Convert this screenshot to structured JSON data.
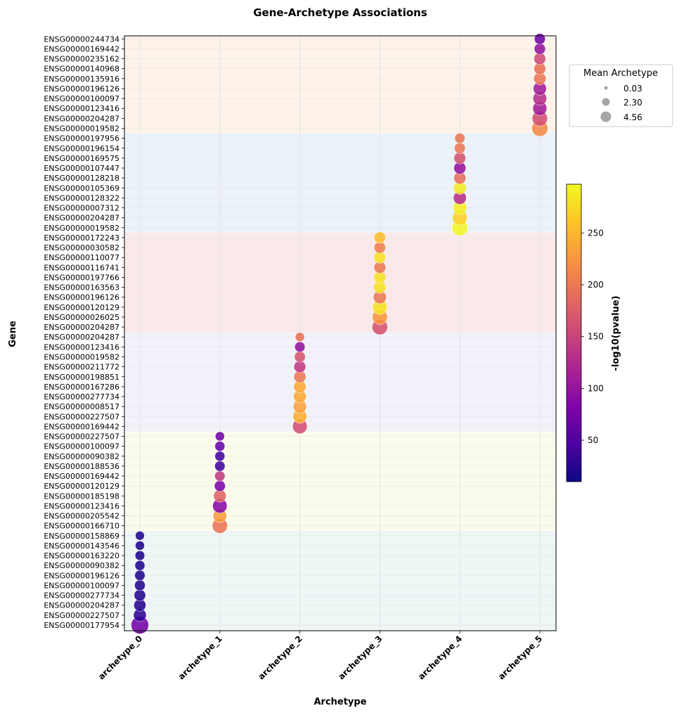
{
  "chart_data": {
    "type": "scatter",
    "title": "Gene-Archetype Associations",
    "xlabel": "Archetype",
    "ylabel": "Gene",
    "categories": [
      "archetype_0",
      "archetype_1",
      "archetype_2",
      "archetype_3",
      "archetype_4",
      "archetype_5"
    ],
    "gene_labels": [
      "ENSG00000177954",
      "ENSG00000227507",
      "ENSG00000204287",
      "ENSG00000277734",
      "ENSG00000100097",
      "ENSG00000196126",
      "ENSG00000090382",
      "ENSG00000163220",
      "ENSG00000143546",
      "ENSG00000158869",
      "ENSG00000166710",
      "ENSG00000205542",
      "ENSG00000123416",
      "ENSG00000185198",
      "ENSG00000120129",
      "ENSG00000169442",
      "ENSG00000188536",
      "ENSG00000090382",
      "ENSG00000100097",
      "ENSG00000227507",
      "ENSG00000169442",
      "ENSG00000227507",
      "ENSG00000008517",
      "ENSG00000277734",
      "ENSG00000167286",
      "ENSG00000198851",
      "ENSG00000211772",
      "ENSG00000019582",
      "ENSG00000123416",
      "ENSG00000204287",
      "ENSG00000204287",
      "ENSG00000026025",
      "ENSG00000120129",
      "ENSG00000196126",
      "ENSG00000163563",
      "ENSG00000197766",
      "ENSG00000116741",
      "ENSG00000110077",
      "ENSG00000030582",
      "ENSG00000172243",
      "ENSG00000019582",
      "ENSG00000204287",
      "ENSG00000007312",
      "ENSG00000128322",
      "ENSG00000105369",
      "ENSG00000128218",
      "ENSG00000107447",
      "ENSG00000169575",
      "ENSG00000196154",
      "ENSG00000197956",
      "ENSG00000019582",
      "ENSG00000204287",
      "ENSG00000123416",
      "ENSG00000100097",
      "ENSG00000196126",
      "ENSG00000135916",
      "ENSG00000140968",
      "ENSG00000235162",
      "ENSG00000169442",
      "ENSG00000244734"
    ],
    "series": [
      {
        "archetype": 0,
        "mean_archetype": [
          4.56,
          1.8,
          1.5,
          1.3,
          1.0,
          0.9,
          0.8,
          0.7,
          0.6,
          0.55
        ],
        "neg_log10_pvalue": [
          75,
          30,
          25,
          22,
          22,
          22,
          20,
          20,
          20,
          20
        ]
      },
      {
        "archetype": 1,
        "mean_archetype": [
          3.0,
          2.2,
          2.6,
          1.7,
          1.1,
          0.9,
          0.9,
          0.8,
          0.8,
          0.6
        ],
        "neg_log10_pvalue": [
          195,
          230,
          90,
          180,
          80,
          140,
          40,
          40,
          65,
          70
        ]
      },
      {
        "archetype": 2,
        "mean_archetype": [
          2.7,
          2.3,
          2.0,
          1.8,
          1.6,
          1.5,
          1.4,
          1.1,
          0.9,
          0.6
        ],
        "neg_log10_pvalue": [
          160,
          245,
          235,
          240,
          240,
          200,
          140,
          165,
          100,
          195
        ]
      },
      {
        "archetype": 3,
        "mean_archetype": [
          3.2,
          3.0,
          2.8,
          1.9,
          1.6,
          1.5,
          1.4,
          1.4,
          1.3,
          1.3
        ],
        "neg_log10_pvalue": [
          165,
          225,
          280,
          200,
          280,
          280,
          200,
          280,
          205,
          255
        ]
      },
      {
        "archetype": 4,
        "mean_archetype": [
          3.4,
          2.8,
          2.2,
          1.9,
          1.8,
          1.5,
          1.5,
          1.4,
          1.1,
          0.9
        ],
        "neg_log10_pvalue": [
          295,
          270,
          290,
          130,
          285,
          190,
          100,
          165,
          200,
          200
        ]
      },
      {
        "archetype": 5,
        "mean_archetype": [
          3.5,
          3.1,
          2.4,
          2.2,
          2.0,
          1.6,
          1.4,
          1.4,
          1.2,
          1.1
        ],
        "neg_log10_pvalue": [
          215,
          160,
          110,
          130,
          110,
          200,
          195,
          155,
          100,
          70
        ]
      }
    ],
    "colorbar": {
      "label": "-log10(pvalue)",
      "colormap": "plasma",
      "range": [
        10,
        297
      ],
      "ticks": [
        50,
        100,
        150,
        200,
        250
      ]
    },
    "legend": {
      "title": "Mean Archetype",
      "placement": "upper-right-outside",
      "entries": [
        "0.03",
        "2.30",
        "4.56"
      ],
      "values": [
        0.03,
        2.3,
        4.56
      ]
    },
    "band_colors": [
      "#eef6f6",
      "#fbfbec",
      "#f1f2fa",
      "#fbe9e9",
      "#ebf2f9",
      "#fdf3ea"
    ],
    "grid": true
  }
}
